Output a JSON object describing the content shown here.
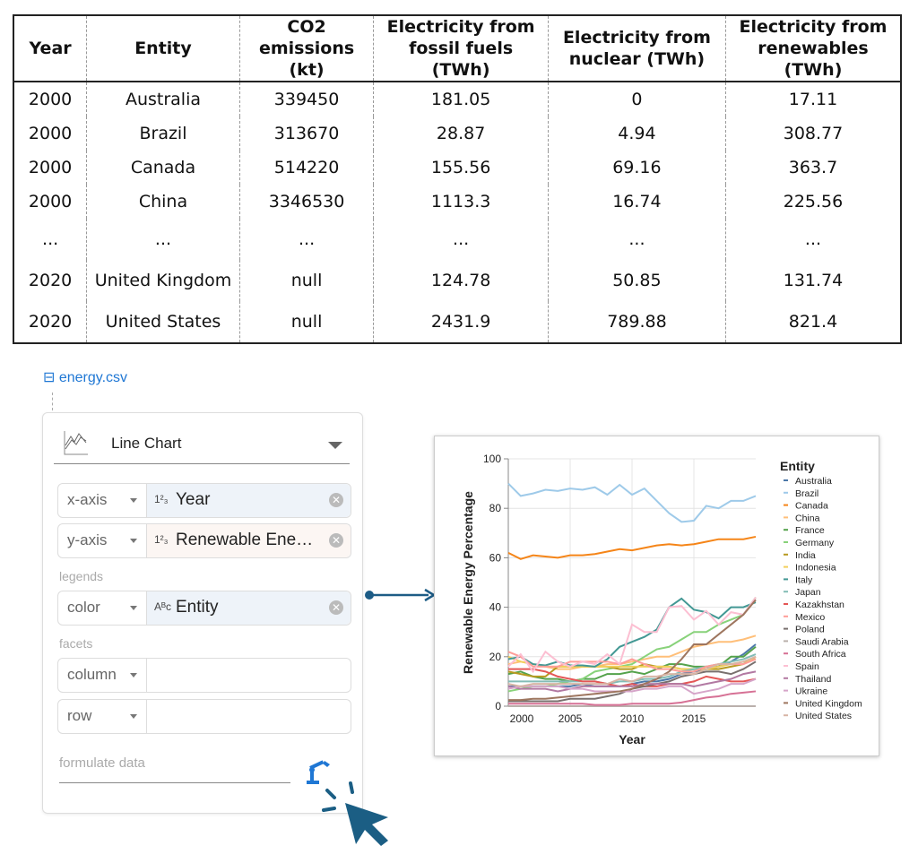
{
  "table": {
    "headers": [
      "Year",
      "Entity",
      "CO2 emissions (kt)",
      "Electricity from fossil fuels (TWh)",
      "Electricity from nuclear (TWh)",
      "Electricity from renewables (TWh)"
    ],
    "rows": [
      [
        "2000",
        "Australia",
        "339450",
        "181.05",
        "0",
        "17.11"
      ],
      [
        "2000",
        "Brazil",
        "313670",
        "28.87",
        "4.94",
        "308.77"
      ],
      [
        "2000",
        "Canada",
        "514220",
        "155.56",
        "69.16",
        "363.7"
      ],
      [
        "2000",
        "China",
        "3346530",
        "1113.3",
        "16.74",
        "225.56"
      ],
      [
        "...",
        "...",
        "...",
        "...",
        "...",
        "..."
      ],
      [
        "2020",
        "United Kingdom",
        "null",
        "124.78",
        "50.85",
        "131.74"
      ],
      [
        "2020",
        "United States",
        "null",
        "2431.9",
        "789.88",
        "821.4"
      ]
    ]
  },
  "panel": {
    "file": "energy.csv",
    "chart_type": "Line Chart",
    "encodings": [
      {
        "channel": "x-axis",
        "type": "1²₃",
        "field": "Year"
      },
      {
        "channel": "y-axis",
        "type": "1²₃",
        "field": "Renewable Ene…"
      },
      {
        "channel": "color",
        "type": "Aᴮc",
        "field": "Entity"
      },
      {
        "channel": "column",
        "type": "",
        "field": ""
      },
      {
        "channel": "row",
        "type": "",
        "field": ""
      }
    ],
    "legends_label": "legends",
    "facets_label": "facets",
    "formula_placeholder": "formulate data",
    "accent": "#1f77d4",
    "arrow_color": "#1d5c86"
  },
  "chart_data": {
    "type": "line",
    "xlabel": "Year",
    "ylabel": "Renewable Energy Percentage",
    "legend_title": "Entity",
    "legend_placement": "right",
    "xlim": [
      2000,
      2020
    ],
    "ylim": [
      0,
      100
    ],
    "xticks": [
      2000,
      2005,
      2010,
      2015
    ],
    "yticks": [
      0,
      20,
      40,
      60,
      80,
      100
    ],
    "grid": true,
    "x": [
      2000,
      2001,
      2002,
      2003,
      2004,
      2005,
      2006,
      2007,
      2008,
      2009,
      2010,
      2011,
      2012,
      2013,
      2014,
      2015,
      2016,
      2017,
      2018,
      2019,
      2020
    ],
    "series": [
      {
        "name": "Australia",
        "color": "#4c78a8",
        "values": [
          8,
          8,
          8,
          8,
          8,
          8,
          9,
          8,
          8,
          8,
          9,
          10,
          10,
          11,
          13,
          14,
          15,
          16,
          18,
          21,
          25
        ]
      },
      {
        "name": "Brazil",
        "color": "#9ecae9",
        "values": [
          90,
          85,
          86,
          87.5,
          87,
          88,
          87.5,
          88.5,
          85.5,
          89.5,
          85.5,
          88,
          83,
          78,
          74.5,
          75,
          81,
          80,
          83,
          83,
          85
        ]
      },
      {
        "name": "Canada",
        "color": "#f58518",
        "values": [
          62,
          59.5,
          61,
          60.5,
          60,
          61,
          61,
          61.5,
          62.5,
          63.5,
          63,
          64,
          65,
          65.5,
          65,
          65.5,
          66.5,
          67.5,
          67.5,
          67.5,
          68.5
        ]
      },
      {
        "name": "China",
        "color": "#ffbf79",
        "values": [
          17,
          18,
          17,
          16,
          15,
          15,
          16,
          16,
          17,
          17,
          18,
          19,
          20,
          20,
          22,
          24,
          25,
          26,
          26,
          27,
          28.5
        ]
      },
      {
        "name": "France",
        "color": "#54a24b",
        "values": [
          13,
          14,
          12,
          11,
          11,
          10,
          11,
          11,
          13,
          13,
          14,
          13,
          15,
          17,
          17,
          16,
          16,
          16,
          20,
          20,
          24
        ]
      },
      {
        "name": "Germany",
        "color": "#88d27a",
        "values": [
          6,
          7,
          8,
          8,
          9,
          10,
          11,
          14,
          15,
          16,
          17,
          20,
          23,
          24,
          27,
          30,
          30,
          33,
          35,
          37,
          44
        ]
      },
      {
        "name": "India",
        "color": "#b79a20",
        "values": [
          14,
          13,
          12,
          12,
          16,
          16,
          16,
          16,
          16,
          15,
          15,
          17,
          16,
          16,
          15,
          15,
          15,
          15,
          16,
          17,
          20
        ]
      },
      {
        "name": "Indonesia",
        "color": "#f2cf5b",
        "values": [
          20,
          18,
          17,
          16,
          16,
          16,
          16,
          16,
          16,
          16,
          16,
          16,
          16,
          16,
          15,
          15,
          15,
          16,
          17,
          18,
          19
        ]
      },
      {
        "name": "Italy",
        "color": "#439894",
        "values": [
          19,
          20,
          17,
          16.5,
          18,
          16.5,
          16.5,
          16,
          19,
          24,
          26,
          28,
          31,
          40,
          43.5,
          39,
          38,
          35.5,
          40,
          40,
          42
        ]
      },
      {
        "name": "Japan",
        "color": "#83bcb6",
        "values": [
          10,
          10,
          10,
          10,
          10,
          10,
          10,
          10,
          9,
          10,
          10,
          11,
          11,
          12,
          14,
          15,
          16,
          17,
          18,
          19,
          21
        ]
      },
      {
        "name": "Kazakhstan",
        "color": "#e45756",
        "values": [
          15,
          15,
          15,
          14,
          12,
          11,
          10,
          10,
          9,
          8,
          9,
          8,
          8,
          9,
          9,
          10,
          12,
          11,
          10,
          10,
          11
        ]
      },
      {
        "name": "Mexico",
        "color": "#ff9d98",
        "values": [
          22,
          20,
          16,
          16,
          16,
          18,
          18,
          18,
          18,
          17,
          19,
          17,
          15,
          15,
          14,
          14,
          16,
          17,
          17,
          17,
          19
        ]
      },
      {
        "name": "Poland",
        "color": "#79706e",
        "values": [
          2,
          2,
          2,
          2,
          2,
          3,
          3,
          3,
          4,
          5,
          7,
          8,
          9,
          10,
          12,
          13,
          14,
          14,
          13,
          15,
          18
        ]
      },
      {
        "name": "Saudi Arabia",
        "color": "#bab0ac",
        "values": [
          0,
          0,
          0,
          0,
          0,
          0,
          0,
          0,
          0,
          0,
          0,
          0,
          0,
          0,
          0,
          0,
          0,
          0,
          0,
          0,
          0
        ]
      },
      {
        "name": "South Africa",
        "color": "#d67195",
        "values": [
          1,
          1,
          1,
          1,
          1,
          1,
          1,
          0.5,
          0.5,
          0.5,
          1,
          1,
          1,
          1,
          1.5,
          2.5,
          3.5,
          4,
          5,
          5.5,
          6
        ]
      },
      {
        "name": "Spain",
        "color": "#fcbfd2",
        "values": [
          16,
          21,
          14,
          22,
          18,
          16,
          18,
          17,
          21,
          17,
          33,
          30,
          30,
          40,
          40.5,
          35,
          38.5,
          33,
          38,
          37,
          44
        ]
      },
      {
        "name": "Thailand",
        "color": "#b279a2",
        "values": [
          8,
          7,
          7,
          7,
          6,
          7,
          8,
          8,
          8,
          8,
          8,
          9,
          9,
          9,
          9,
          8,
          9,
          10,
          11,
          13,
          14
        ]
      },
      {
        "name": "Ukraine",
        "color": "#d6a5c9",
        "values": [
          7,
          8,
          8,
          8,
          8,
          7,
          7,
          6,
          6,
          6,
          6,
          7,
          7,
          8,
          8,
          5,
          6,
          7,
          9,
          9,
          11
        ]
      },
      {
        "name": "United Kingdom",
        "color": "#9e765f",
        "values": [
          2.5,
          2.5,
          3,
          3,
          3.5,
          4,
          4.5,
          5,
          5.5,
          6,
          7,
          9,
          11,
          14,
          19,
          25,
          25,
          29,
          33,
          37,
          43
        ]
      },
      {
        "name": "United States",
        "color": "#d8b5a5",
        "values": [
          9,
          8,
          9,
          9,
          9,
          9,
          9,
          9,
          9,
          11,
          10,
          12,
          12,
          13,
          13,
          13,
          15,
          17,
          17,
          18,
          20
        ]
      }
    ]
  }
}
